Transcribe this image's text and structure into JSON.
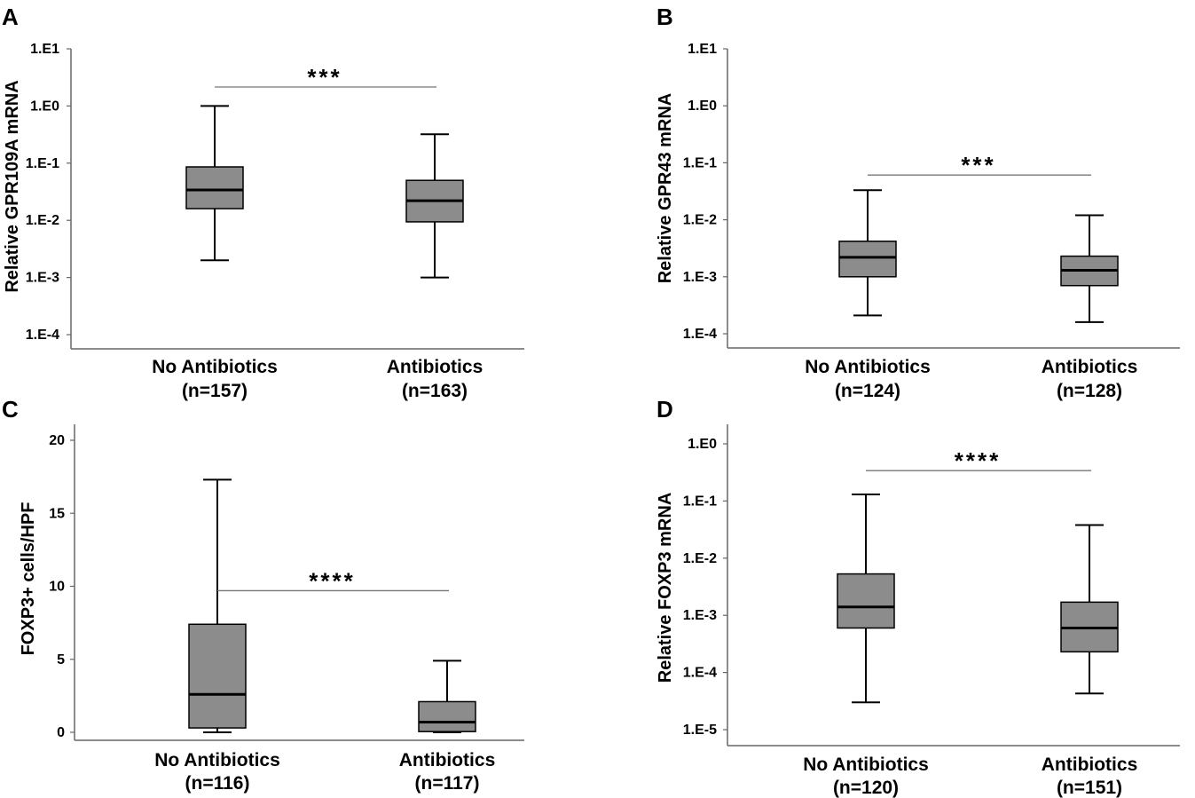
{
  "colors": {
    "box_fill": "#8c8c8c",
    "line": "#000000",
    "axis": "#666666",
    "sig_line": "#777777"
  },
  "chart_data": [
    {
      "panel": "A",
      "type": "box",
      "yscale": "log",
      "ylabel": "Relative GPR109A mRNA",
      "ylim": [
        0.0001,
        10
      ],
      "yticks": [
        10,
        1,
        0.1,
        0.01,
        0.001,
        0.0001
      ],
      "ytick_labels": [
        "1.E1",
        "1.E0",
        "1.E-1",
        "1.E-2",
        "1.E-3",
        "1.E-4"
      ],
      "categories": [
        {
          "name": "No Antibiotics",
          "n": "(n=157)",
          "min": 0.002,
          "q1": 0.016,
          "median": 0.034,
          "q3": 0.086,
          "max": 1.0
        },
        {
          "name": "Antibiotics",
          "n": "(n=163)",
          "min": 0.001,
          "q1": 0.0094,
          "median": 0.022,
          "q3": 0.05,
          "max": 0.32
        }
      ],
      "significance": {
        "label": "***",
        "value": 2.15
      }
    },
    {
      "panel": "B",
      "type": "box",
      "yscale": "log",
      "ylabel": "Relative GPR43 mRNA",
      "ylim": [
        0.0001,
        10
      ],
      "yticks": [
        10,
        1,
        0.1,
        0.01,
        0.001,
        0.0001
      ],
      "ytick_labels": [
        "1.E1",
        "1.E0",
        "1.E-1",
        "1.E-2",
        "1.E-3",
        "1.E-4"
      ],
      "categories": [
        {
          "name": "No Antibiotics",
          "n": "(n=124)",
          "min": 0.00021,
          "q1": 0.001,
          "median": 0.0022,
          "q3": 0.0042,
          "max": 0.033
        },
        {
          "name": "Antibiotics",
          "n": "(n=128)",
          "min": 0.00016,
          "q1": 0.0007,
          "median": 0.0013,
          "q3": 0.0023,
          "max": 0.012
        }
      ],
      "significance": {
        "label": "***",
        "value": 0.061
      }
    },
    {
      "panel": "C",
      "type": "box",
      "yscale": "linear",
      "ylabel": "FOXP3+ cells/HPF",
      "ylim": [
        -0.5,
        20.5
      ],
      "yticks": [
        20,
        15,
        10,
        5,
        0
      ],
      "ytick_labels": [
        "20",
        "15",
        "10",
        "5",
        "0"
      ],
      "categories": [
        {
          "name": "No Antibiotics",
          "n": "(n=116)",
          "min": 0.0,
          "q1": 0.3,
          "median": 2.6,
          "q3": 7.4,
          "max": 17.3
        },
        {
          "name": "Antibiotics",
          "n": "(n=117)",
          "min": 0.0,
          "q1": 0.05,
          "median": 0.7,
          "q3": 2.1,
          "max": 4.9
        }
      ],
      "significance": {
        "label": "****",
        "value": 9.7
      }
    },
    {
      "panel": "D",
      "type": "box",
      "yscale": "log",
      "ylabel": "Relative FOXP3 mRNA",
      "ylim": [
        1e-05,
        1
      ],
      "yticks": [
        1,
        0.1,
        0.01,
        0.001,
        0.0001,
        1e-05
      ],
      "ytick_labels": [
        "1.E0",
        "1.E-1",
        "1.E-2",
        "1.E-3",
        "1.E-4",
        "1.E-5"
      ],
      "categories": [
        {
          "name": "No Antibiotics",
          "n": "(n=120)",
          "min": 3e-05,
          "q1": 0.0006,
          "median": 0.0014,
          "q3": 0.0053,
          "max": 0.13
        },
        {
          "name": "Antibiotics",
          "n": "(n=151)",
          "min": 4.3e-05,
          "q1": 0.00023,
          "median": 0.0006,
          "q3": 0.0017,
          "max": 0.038
        }
      ],
      "significance": {
        "label": "****",
        "value": 0.34
      }
    }
  ]
}
